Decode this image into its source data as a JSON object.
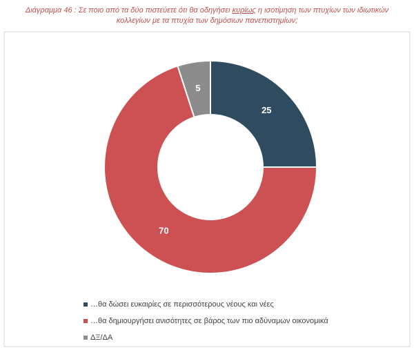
{
  "chart_data": {
    "type": "doughnut",
    "title": [
      "Διάγραμμα 46 : Σε ποιο από τα δύο πιστεύετε ότι θα οδηγήσει ",
      "κυρίως",
      " η ισοτίμηση των πτυχίων των ιδιωτικών κολλεγίων με τα πτυχία των δημόσιων πανεπιστημίων;"
    ],
    "categories": [
      "…θα δώσει ευκαιρίες σε περισσότερους νέους και νέες",
      "…θα δημιουργήσει ανισότητες σε βάρος των πιο αδύναμων οικονομικά",
      "ΔΞ/ΔΑ"
    ],
    "values": [
      25,
      70,
      5
    ],
    "colors": [
      "#2f4b5f",
      "#cd5052",
      "#8c8c8c"
    ],
    "legend": "bottom"
  }
}
